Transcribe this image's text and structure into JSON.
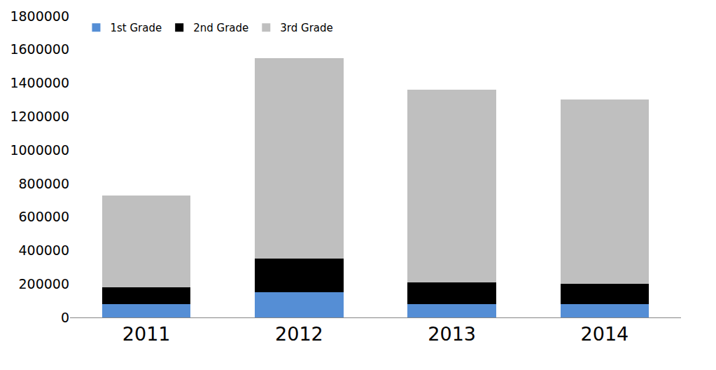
{
  "chart_data": {
    "type": "bar",
    "stacked": true,
    "categories": [
      "2011",
      "2012",
      "2013",
      "2014"
    ],
    "series": [
      {
        "name": "1st Grade",
        "color": "#558ed5",
        "values": [
          80000,
          150000,
          80000,
          80000
        ]
      },
      {
        "name": "2nd Grade",
        "color": "#000000",
        "values": [
          100000,
          200000,
          130000,
          120000
        ]
      },
      {
        "name": "3rd Grade",
        "color": "#bfbfbf",
        "values": [
          550000,
          1200000,
          1150000,
          1100000
        ]
      }
    ],
    "ylim": [
      0,
      1800000
    ],
    "yticks": [
      0,
      200000,
      400000,
      600000,
      800000,
      1000000,
      1200000,
      1400000,
      1600000,
      1800000
    ],
    "grid": false,
    "legend": "top-left"
  }
}
